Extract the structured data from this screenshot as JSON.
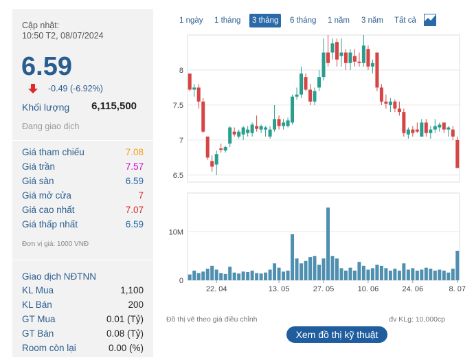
{
  "summary": {
    "updated_label": "Cập nhật:",
    "updated_time": "10:50 T2, 08/07/2024",
    "price": "6.59",
    "change": "-0.49 (-6.92%)",
    "volume_label": "Khối lượng",
    "volume_value": "6,115,500",
    "status": "Đang giao dịch"
  },
  "price_rows": [
    {
      "label": "Giá tham chiếu",
      "value": "7.08",
      "color": "#f0a11a"
    },
    {
      "label": "Giá trần",
      "value": "7.57",
      "color": "#d400d4"
    },
    {
      "label": "Giá sàn",
      "value": "6.59",
      "color": "#2a6aa8"
    },
    {
      "label": "Giá mở cửa",
      "value": "7",
      "color": "#d92b2b"
    },
    {
      "label": "Giá cao nhất",
      "value": "7.07",
      "color": "#d92b2b"
    },
    {
      "label": "Giá thấp nhất",
      "value": "6.59",
      "color": "#2a6aa8"
    }
  ],
  "unit_note": "Đơn vị giá: 1000 VNĐ",
  "foreign": {
    "title": "Giao dịch NĐTNN",
    "rows": [
      {
        "label": "KL Mua",
        "value": "1,100"
      },
      {
        "label": "KL Bán",
        "value": "200"
      },
      {
        "label": "GT Mua",
        "value": "0.01 (Tỷ)"
      },
      {
        "label": "GT Bán",
        "value": "0.08 (Tỷ)"
      },
      {
        "label": "Room còn lại",
        "value": "0.00 (%)"
      }
    ]
  },
  "tabs": [
    "1 ngày",
    "1 tháng",
    "3 tháng",
    "6 tháng",
    "1 năm",
    "3 năm",
    "Tất cả"
  ],
  "active_tab": "3 tháng",
  "chart_note_left": "Đồ thị vẽ theo giá điều chỉnh",
  "chart_note_right": "đv KLg: 10,000cp",
  "tech_button": "Xem đồ thị kỹ thuật",
  "colors": {
    "up": "#2a9d8f",
    "down": "#d64545",
    "volume": "#4f8fb0",
    "accent": "#2a5d8f"
  },
  "chart_data": {
    "type": "candlestick",
    "price_axis": {
      "ticks": [
        "8",
        "7.5",
        "7",
        "6.5"
      ],
      "tick_values": [
        8,
        7.5,
        7,
        6.5
      ],
      "range": [
        6.4,
        8.5
      ]
    },
    "volume_axis": {
      "ticks": [
        "10M",
        "0"
      ],
      "tick_values": [
        10000000,
        0
      ],
      "range": [
        0,
        18000000
      ]
    },
    "x_ticks": [
      {
        "label": "22. 04",
        "index": 6
      },
      {
        "label": "13. 05",
        "index": 20
      },
      {
        "label": "27. 05",
        "index": 30
      },
      {
        "label": "10. 06",
        "index": 40
      },
      {
        "label": "24. 06",
        "index": 50
      },
      {
        "label": "8. 07",
        "index": 60
      }
    ],
    "candles": [
      [
        7.95,
        7.95,
        7.7,
        7.72,
        1.2
      ],
      [
        7.72,
        7.8,
        7.62,
        7.75,
        2.0
      ],
      [
        7.75,
        7.8,
        7.45,
        7.55,
        1.5
      ],
      [
        7.55,
        7.6,
        7.1,
        7.12,
        1.8
      ],
      [
        7.05,
        7.05,
        6.72,
        6.75,
        2.4
      ],
      [
        6.7,
        6.78,
        6.55,
        6.62,
        3.0
      ],
      [
        6.65,
        6.85,
        6.5,
        6.8,
        2.2
      ],
      [
        6.88,
        6.95,
        6.82,
        6.86,
        1.5
      ],
      [
        6.85,
        6.92,
        6.82,
        6.9,
        1.3
      ],
      [
        6.95,
        7.2,
        6.9,
        7.18,
        2.8
      ],
      [
        7.12,
        7.18,
        7.05,
        7.08,
        1.6
      ],
      [
        7.05,
        7.15,
        7.02,
        7.12,
        1.4
      ],
      [
        7.08,
        7.2,
        7.0,
        7.18,
        1.8
      ],
      [
        7.1,
        7.2,
        7.05,
        7.15,
        1.7
      ],
      [
        7.1,
        7.25,
        7.05,
        7.22,
        2.0
      ],
      [
        7.2,
        7.35,
        7.12,
        7.16,
        1.5
      ],
      [
        7.15,
        7.22,
        7.1,
        7.2,
        1.4
      ],
      [
        7.15,
        7.2,
        7.05,
        7.18,
        1.6
      ],
      [
        7.05,
        7.2,
        7.02,
        7.15,
        2.2
      ],
      [
        7.15,
        7.5,
        7.12,
        7.3,
        3.5
      ],
      [
        7.3,
        7.35,
        7.15,
        7.2,
        2.6
      ],
      [
        7.2,
        7.3,
        7.15,
        7.25,
        1.8
      ],
      [
        7.2,
        7.32,
        7.18,
        7.28,
        2.0
      ],
      [
        7.25,
        7.65,
        7.22,
        7.62,
        9.5
      ],
      [
        7.62,
        7.75,
        7.58,
        7.65,
        4.5
      ],
      [
        7.65,
        8.05,
        7.6,
        7.95,
        3.5
      ],
      [
        7.9,
        7.95,
        7.7,
        7.72,
        4.0
      ],
      [
        7.72,
        7.8,
        7.5,
        7.55,
        4.8
      ],
      [
        7.55,
        7.75,
        7.5,
        7.7,
        5.0
      ],
      [
        7.75,
        8.0,
        7.7,
        7.9,
        3.2
      ],
      [
        7.9,
        8.45,
        7.85,
        8.25,
        4.5
      ],
      [
        8.25,
        8.5,
        8.05,
        8.1,
        15.0
      ],
      [
        8.25,
        8.45,
        8.15,
        8.38,
        5.0
      ],
      [
        8.4,
        8.45,
        8.05,
        8.15,
        4.5
      ],
      [
        8.2,
        8.45,
        8.05,
        8.25,
        2.5
      ],
      [
        8.25,
        8.3,
        8.0,
        8.1,
        2.0
      ],
      [
        8.1,
        8.3,
        8.0,
        8.25,
        2.6
      ],
      [
        8.2,
        8.3,
        8.05,
        8.12,
        2.0
      ],
      [
        8.12,
        8.25,
        8.05,
        8.1,
        3.8
      ],
      [
        8.1,
        8.5,
        8.05,
        8.35,
        3.0
      ],
      [
        8.3,
        8.35,
        8.0,
        8.05,
        2.2
      ],
      [
        8.05,
        8.15,
        7.95,
        8.1,
        2.5
      ],
      [
        8.25,
        8.25,
        7.7,
        7.75,
        3.2
      ],
      [
        7.75,
        7.8,
        7.5,
        7.55,
        3.0
      ],
      [
        7.55,
        7.65,
        7.45,
        7.52,
        2.5
      ],
      [
        7.5,
        7.6,
        7.4,
        7.55,
        2.0
      ],
      [
        7.55,
        7.58,
        7.4,
        7.45,
        2.4
      ],
      [
        7.45,
        7.55,
        7.35,
        7.4,
        2.0
      ],
      [
        7.4,
        7.45,
        7.05,
        7.1,
        3.5
      ],
      [
        7.08,
        7.18,
        7.02,
        7.15,
        2.2
      ],
      [
        7.15,
        7.2,
        7.05,
        7.1,
        2.5
      ],
      [
        7.15,
        7.25,
        7.1,
        7.12,
        2.0
      ],
      [
        7.05,
        7.3,
        7.05,
        7.25,
        2.2
      ],
      [
        7.25,
        7.3,
        7.05,
        7.1,
        2.6
      ],
      [
        7.1,
        7.2,
        7.02,
        7.15,
        2.4
      ],
      [
        7.15,
        7.3,
        7.1,
        7.2,
        2.0
      ],
      [
        7.18,
        7.25,
        7.12,
        7.22,
        2.2
      ],
      [
        7.25,
        7.25,
        7.1,
        7.15,
        2.0
      ],
      [
        7.15,
        7.2,
        7.05,
        7.18,
        1.6
      ],
      [
        7.15,
        7.2,
        7.0,
        7.05,
        2.4
      ],
      [
        7.0,
        7.05,
        6.6,
        6.6,
        6.1
      ]
    ]
  }
}
